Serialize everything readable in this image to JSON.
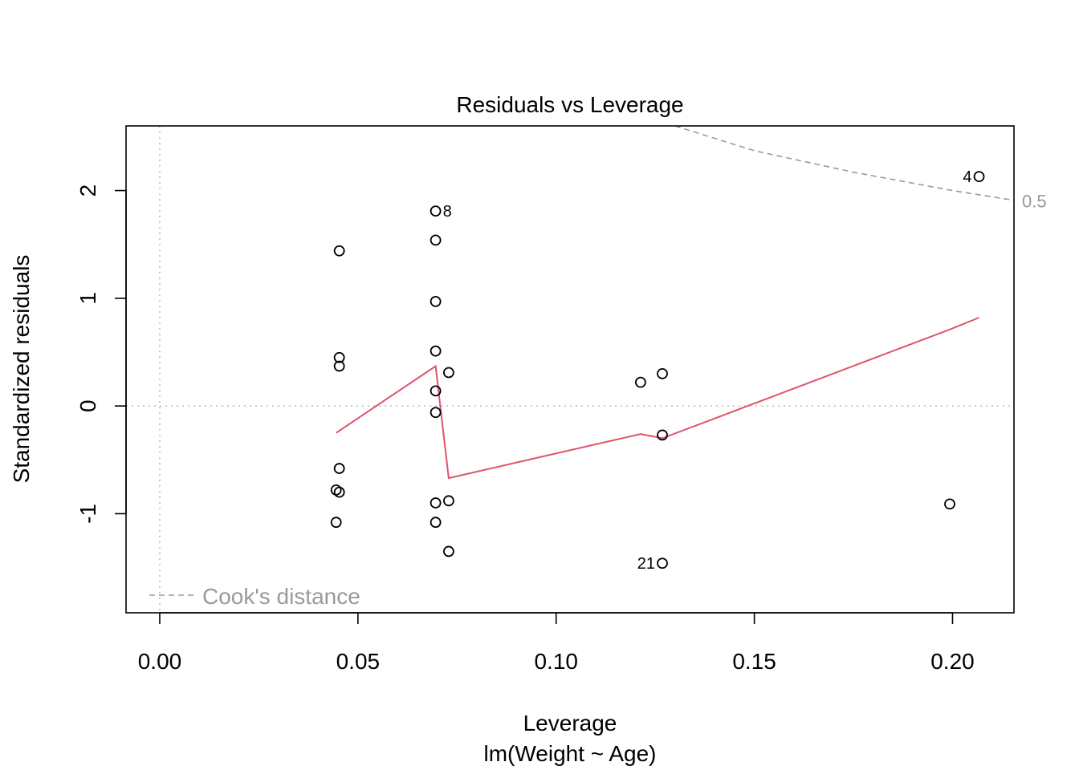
{
  "chart_data": {
    "type": "scatter",
    "title": "Residuals vs Leverage",
    "xlabel": "Leverage",
    "subtitle": "lm(Weight ~ Age)",
    "ylabel": "Standardized residuals",
    "xlim": [
      -0.0085,
      0.2155
    ],
    "ylim": [
      -1.92,
      2.6
    ],
    "x_ticks": [
      0.0,
      0.05,
      0.1,
      0.15,
      0.2
    ],
    "x_tick_labels": [
      "0.00",
      "0.05",
      "0.10",
      "0.15",
      "0.20"
    ],
    "y_ticks": [
      -1,
      0,
      1,
      2
    ],
    "y_tick_labels": [
      "-1",
      "0",
      "1",
      "2"
    ],
    "grid": false,
    "reference_lines": {
      "x": 0,
      "y": 0,
      "style": "dotted",
      "color": "#bebebe"
    },
    "points": [
      {
        "x": 0.0445,
        "y": -0.78
      },
      {
        "x": 0.0445,
        "y": -1.08
      },
      {
        "x": 0.0453,
        "y": 1.44
      },
      {
        "x": 0.0453,
        "y": 0.45
      },
      {
        "x": 0.0453,
        "y": 0.37
      },
      {
        "x": 0.0453,
        "y": -0.58
      },
      {
        "x": 0.0453,
        "y": -0.8
      },
      {
        "x": 0.0696,
        "y": 1.81,
        "label": "8"
      },
      {
        "x": 0.0696,
        "y": 1.54
      },
      {
        "x": 0.0696,
        "y": 0.97
      },
      {
        "x": 0.0696,
        "y": 0.51
      },
      {
        "x": 0.0696,
        "y": 0.14
      },
      {
        "x": 0.0696,
        "y": -0.06
      },
      {
        "x": 0.0696,
        "y": -0.9
      },
      {
        "x": 0.0696,
        "y": -1.08
      },
      {
        "x": 0.0729,
        "y": 0.31
      },
      {
        "x": 0.0729,
        "y": -0.88
      },
      {
        "x": 0.0729,
        "y": -1.35
      },
      {
        "x": 0.1213,
        "y": 0.22
      },
      {
        "x": 0.1268,
        "y": 0.3
      },
      {
        "x": 0.1268,
        "y": -0.27
      },
      {
        "x": 0.1268,
        "y": -1.46,
        "label": "21"
      },
      {
        "x": 0.1993,
        "y": -0.91
      },
      {
        "x": 0.2067,
        "y": 2.13,
        "label": "4"
      }
    ],
    "smoother": {
      "name": "smooth",
      "color": "#DF536B",
      "points": [
        {
          "x": 0.0445,
          "y": -0.25
        },
        {
          "x": 0.0696,
          "y": 0.37
        },
        {
          "x": 0.0729,
          "y": -0.67
        },
        {
          "x": 0.1213,
          "y": -0.26
        },
        {
          "x": 0.1268,
          "y": -0.3
        },
        {
          "x": 0.1993,
          "y": 0.71
        },
        {
          "x": 0.2067,
          "y": 0.82
        }
      ]
    },
    "cooks_contours": [
      {
        "label": "0.5",
        "color": "#9a9a9a",
        "points": [
          {
            "x": 0.13,
            "y": 2.6
          },
          {
            "x": 0.15,
            "y": 2.37
          },
          {
            "x": 0.175,
            "y": 2.17
          },
          {
            "x": 0.2,
            "y": 2.0
          },
          {
            "x": 0.2155,
            "y": 1.91
          }
        ]
      }
    ],
    "legend": {
      "text": "Cook's distance",
      "position": "bottom-left",
      "color": "#9a9a9a"
    }
  }
}
